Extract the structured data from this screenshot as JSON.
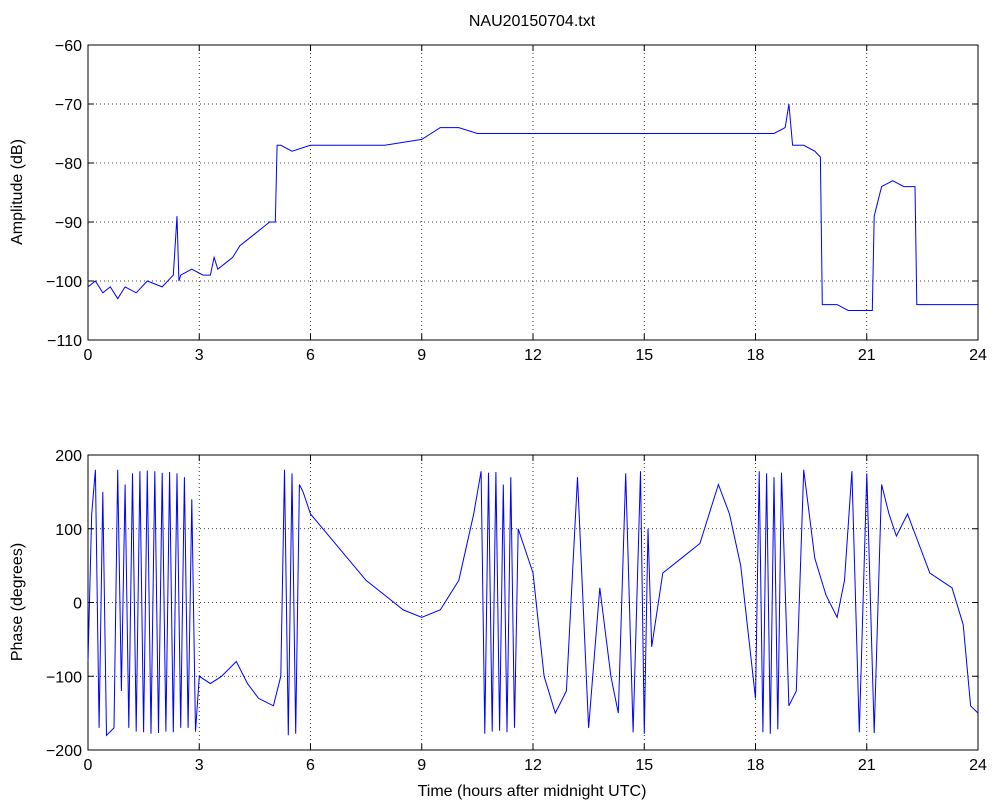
{
  "chart_data": [
    {
      "type": "line",
      "title": "NAU20150704.txt",
      "xlabel": "",
      "ylabel": "Amplitude (dB)",
      "xlim": [
        0,
        24
      ],
      "ylim": [
        -110,
        -60
      ],
      "xticks": [
        0,
        3,
        6,
        9,
        12,
        15,
        18,
        21,
        24
      ],
      "yticks": [
        -60,
        -70,
        -80,
        -90,
        -100,
        -110
      ],
      "ytick_labels": [
        "−60",
        "−70",
        "−80",
        "−90",
        "−100",
        "−110"
      ],
      "grid": true,
      "line_color": "#0000ff",
      "series": [
        {
          "x": [
            0,
            0.2,
            0.4,
            0.6,
            0.8,
            1.0,
            1.3,
            1.6,
            2.0,
            2.3,
            2.4,
            2.45,
            2.5,
            2.8,
            3.1,
            3.3,
            3.4,
            3.5,
            3.7,
            3.9,
            4.1,
            4.3,
            4.5,
            4.7,
            4.9,
            5.05,
            5.1,
            5.2,
            5.5,
            6.0,
            7.0,
            8.0,
            9.0,
            9.5,
            10.0,
            10.5,
            11.0,
            12.0,
            13.0,
            14.0,
            15.0,
            16.0,
            17.0,
            18.0,
            18.5,
            18.8,
            18.9,
            19.0,
            19.3,
            19.6,
            19.75,
            19.8,
            19.9,
            20.2,
            20.5,
            20.8,
            21.0,
            21.15,
            21.2,
            21.4,
            21.7,
            22.0,
            22.3,
            22.35,
            22.5,
            23.0,
            23.5,
            24.0
          ],
          "y": [
            -101,
            -100,
            -102,
            -101,
            -103,
            -101,
            -102,
            -100,
            -101,
            -99,
            -89,
            -100,
            -99,
            -98,
            -99,
            -99,
            -96,
            -98,
            -97,
            -96,
            -94,
            -93,
            -92,
            -91,
            -90,
            -90,
            -77,
            -77,
            -78,
            -77,
            -77,
            -77,
            -76,
            -74,
            -74,
            -75,
            -75,
            -75,
            -75,
            -75,
            -75,
            -75,
            -75,
            -75,
            -75,
            -74,
            -70,
            -77,
            -77,
            -78,
            -79,
            -104,
            -104,
            -104,
            -105,
            -105,
            -105,
            -105,
            -89,
            -84,
            -83,
            -84,
            -84,
            -104,
            -104,
            -104,
            -104,
            -104
          ]
        }
      ]
    },
    {
      "type": "line",
      "title": "",
      "xlabel": "Time (hours after midnight UTC)",
      "ylabel": "Phase (degrees)",
      "xlim": [
        0,
        24
      ],
      "ylim": [
        -200,
        200
      ],
      "xticks": [
        0,
        3,
        6,
        9,
        12,
        15,
        18,
        21,
        24
      ],
      "yticks": [
        200,
        100,
        0,
        -100,
        -200
      ],
      "ytick_labels": [
        "200",
        "100",
        "0",
        "−100",
        "−200"
      ],
      "grid": true,
      "line_color": "#0000ff",
      "series": [
        {
          "x": [
            0,
            0.1,
            0.2,
            0.3,
            0.4,
            0.5,
            0.7,
            0.8,
            0.9,
            1.0,
            1.1,
            1.2,
            1.3,
            1.4,
            1.5,
            1.6,
            1.7,
            1.8,
            1.9,
            2.0,
            2.1,
            2.2,
            2.3,
            2.4,
            2.5,
            2.6,
            2.7,
            2.8,
            2.9,
            3.0,
            3.3,
            3.6,
            4.0,
            4.3,
            4.6,
            5.0,
            5.2,
            5.3,
            5.4,
            5.5,
            5.6,
            5.7,
            5.8,
            6.0,
            6.5,
            7.0,
            7.5,
            8.0,
            8.5,
            9.0,
            9.5,
            10.0,
            10.4,
            10.6,
            10.7,
            10.8,
            10.9,
            11.0,
            11.1,
            11.2,
            11.3,
            11.4,
            11.5,
            11.6,
            11.8,
            12.0,
            12.3,
            12.6,
            12.9,
            13.2,
            13.5,
            13.8,
            14.1,
            14.3,
            14.5,
            14.7,
            14.9,
            15.0,
            15.1,
            15.2,
            15.5,
            16.0,
            16.5,
            17.0,
            17.3,
            17.6,
            18.0,
            18.1,
            18.2,
            18.3,
            18.4,
            18.5,
            18.6,
            18.7,
            18.9,
            19.1,
            19.3,
            19.6,
            19.9,
            20.2,
            20.4,
            20.6,
            20.8,
            21.0,
            21.2,
            21.4,
            21.6,
            21.8,
            22.1,
            22.4,
            22.7,
            23.0,
            23.3,
            23.6,
            23.8,
            24.0
          ],
          "y": [
            -80,
            120,
            180,
            -170,
            150,
            -180,
            -170,
            180,
            -120,
            160,
            -170,
            175,
            -175,
            178,
            -176,
            179,
            -178,
            178,
            -177,
            176,
            -175,
            177,
            -176,
            175,
            -170,
            170,
            -170,
            140,
            -175,
            -100,
            -110,
            -100,
            -80,
            -110,
            -130,
            -140,
            -100,
            180,
            -180,
            175,
            -178,
            160,
            150,
            120,
            90,
            60,
            30,
            10,
            -10,
            -20,
            -10,
            30,
            120,
            178,
            -178,
            176,
            -175,
            177,
            -174,
            160,
            -176,
            170,
            -170,
            100,
            70,
            40,
            -100,
            -150,
            -120,
            170,
            -170,
            20,
            -100,
            -150,
            175,
            -176,
            178,
            -178,
            100,
            -60,
            40,
            60,
            80,
            160,
            120,
            50,
            -130,
            178,
            -176,
            175,
            -178,
            170,
            -172,
            176,
            -140,
            -120,
            180,
            60,
            10,
            -20,
            30,
            178,
            -176,
            175,
            -177,
            160,
            120,
            90,
            120,
            80,
            40,
            30,
            20,
            -30,
            -140,
            -150
          ]
        }
      ]
    }
  ]
}
